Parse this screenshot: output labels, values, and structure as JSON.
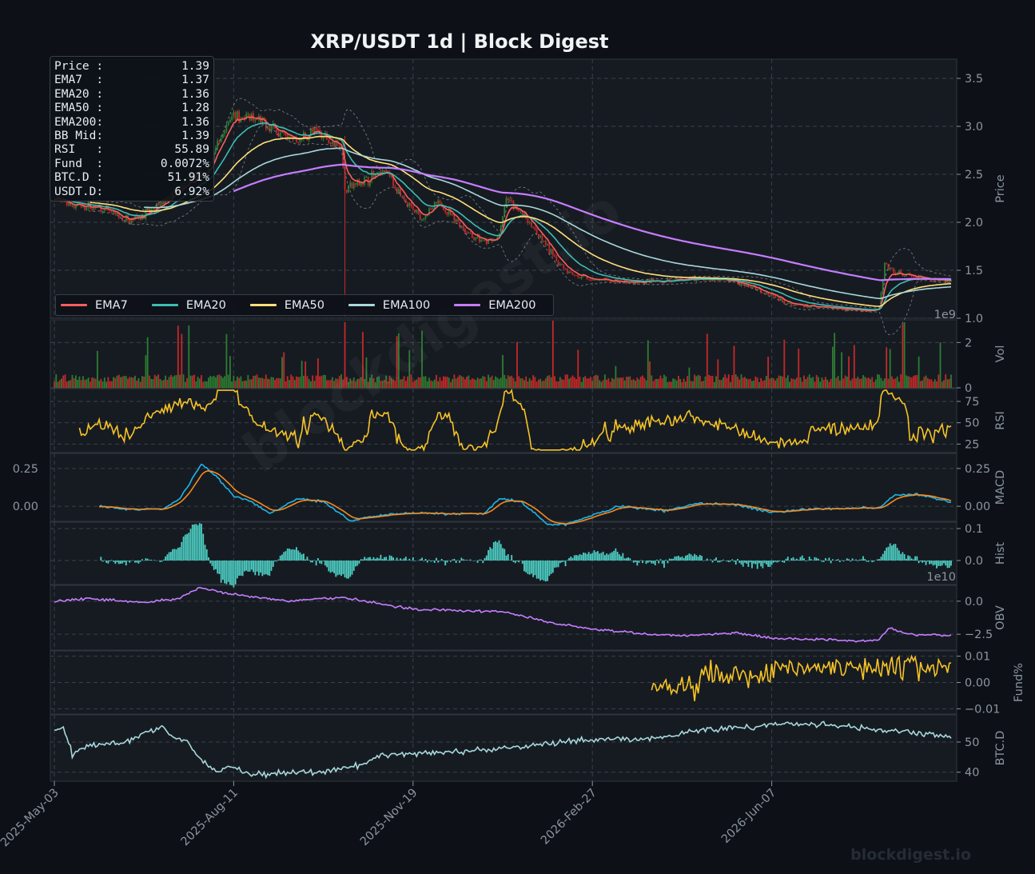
{
  "title": "XRP/USDT  1d  |  Block Digest",
  "watermark": "blockdigest.io",
  "footer_brand": "blockdigest.io",
  "colors": {
    "background": "#0d1117",
    "panel": "#161b22",
    "ema7": "#f85e5e",
    "ema20": "#3dbdb3",
    "ema50": "#ffe07a",
    "ema100": "#a8d8dc",
    "ema200": "#c77dff",
    "up": "#2e7d32",
    "down": "#c62828",
    "rsi": "#f7c325",
    "macd": "#1fb6e8",
    "signal": "#f7891e",
    "hist": "#4ed1c6",
    "obv": "#c77dff",
    "funding": "#f7c325",
    "btcd": "#a8d8dc"
  },
  "info_box": [
    {
      "label": "Price :",
      "value": "1.39"
    },
    {
      "label": "EMA7  :",
      "value": "1.37"
    },
    {
      "label": "EMA20 :",
      "value": "1.36"
    },
    {
      "label": "EMA50 :",
      "value": "1.28"
    },
    {
      "label": "EMA200:",
      "value": "1.36"
    },
    {
      "label": "BB Mid:",
      "value": "1.39"
    },
    {
      "label": "RSI   :",
      "value": "55.89"
    },
    {
      "label": "Fund  :",
      "value": "0.0072%"
    },
    {
      "label": "BTC.D :",
      "value": "51.91%"
    },
    {
      "label": "USDT.D:",
      "value": "6.92%"
    }
  ],
  "legend": [
    {
      "name": "EMA7",
      "color": "#f85e5e"
    },
    {
      "name": "EMA20",
      "color": "#3dbdb3"
    },
    {
      "name": "EMA50",
      "color": "#ffe07a"
    },
    {
      "name": "EMA100",
      "color": "#a8d8dc"
    },
    {
      "name": "EMA200",
      "color": "#c77dff"
    }
  ],
  "chart_data": {
    "type": "line",
    "title": "XRP/USDT  1d  |  Block Digest",
    "x_tick_labels": [
      "2025-May-03",
      "2025-Aug-11",
      "2025-Nov-19",
      "2026-Feb-27",
      "2026-Jun-07"
    ],
    "x_tick_days": [
      0,
      100,
      200,
      300,
      400
    ],
    "n_days": 500,
    "grid": true,
    "legend_position": "bottom-left",
    "panels": [
      {
        "id": "price",
        "ylabel": "Price",
        "ylim": [
          1.0,
          3.7
        ],
        "ticks": [
          1.0,
          1.5,
          2.0,
          2.5,
          3.0,
          3.5
        ],
        "tick_labels": [
          "1.0",
          "1.5",
          "2.0",
          "2.5",
          "3.0",
          "3.5"
        ],
        "close_keypoints": [
          [
            0,
            2.25
          ],
          [
            10,
            2.18
          ],
          [
            25,
            2.15
          ],
          [
            40,
            2.02
          ],
          [
            55,
            2.12
          ],
          [
            70,
            2.35
          ],
          [
            85,
            2.55
          ],
          [
            95,
            2.95
          ],
          [
            100,
            3.15
          ],
          [
            105,
            3.1
          ],
          [
            120,
            3.0
          ],
          [
            135,
            2.85
          ],
          [
            145,
            2.95
          ],
          [
            160,
            2.8
          ],
          [
            162,
            2.35
          ],
          [
            175,
            2.45
          ],
          [
            185,
            2.55
          ],
          [
            195,
            2.2
          ],
          [
            205,
            2.05
          ],
          [
            215,
            2.2
          ],
          [
            230,
            1.9
          ],
          [
            240,
            1.78
          ],
          [
            248,
            1.85
          ],
          [
            252,
            2.25
          ],
          [
            258,
            2.15
          ],
          [
            265,
            2.0
          ],
          [
            280,
            1.6
          ],
          [
            290,
            1.45
          ],
          [
            300,
            1.4
          ],
          [
            320,
            1.37
          ],
          [
            340,
            1.38
          ],
          [
            360,
            1.42
          ],
          [
            380,
            1.38
          ],
          [
            400,
            1.25
          ],
          [
            410,
            1.15
          ],
          [
            420,
            1.12
          ],
          [
            440,
            1.1
          ],
          [
            455,
            1.08
          ],
          [
            460,
            1.1
          ],
          [
            463,
            1.55
          ],
          [
            467,
            1.48
          ],
          [
            480,
            1.42
          ],
          [
            500,
            1.39
          ]
        ],
        "series": [
          {
            "name": "EMA7",
            "period": 7
          },
          {
            "name": "EMA20",
            "period": 20
          },
          {
            "name": "EMA50",
            "period": 50
          },
          {
            "name": "EMA100",
            "period": 100
          },
          {
            "name": "EMA200",
            "period": 200
          }
        ],
        "scale_note": "1e9"
      },
      {
        "id": "vol",
        "ylabel": "Vol",
        "ylim": [
          0,
          3
        ],
        "ticks": [
          0,
          2
        ],
        "tick_labels": [
          "0",
          "2"
        ],
        "units": "1e9"
      },
      {
        "id": "rsi",
        "ylabel": "RSI",
        "ylim": [
          15,
          90
        ],
        "ticks": [
          25,
          50,
          75
        ],
        "tick_labels": [
          "25",
          "50",
          "75"
        ],
        "latest": 55.89
      },
      {
        "id": "macd",
        "ylabel": "MACD",
        "ylim": [
          -0.1,
          0.35
        ],
        "ticks": [
          0.0,
          0.25
        ],
        "tick_labels": [
          "0.00",
          "0.25"
        ],
        "keypoints": [
          [
            25,
            0.0
          ],
          [
            40,
            -0.02
          ],
          [
            60,
            -0.02
          ],
          [
            70,
            0.05
          ],
          [
            82,
            0.28
          ],
          [
            90,
            0.2
          ],
          [
            100,
            0.07
          ],
          [
            110,
            0.03
          ],
          [
            120,
            -0.05
          ],
          [
            135,
            0.05
          ],
          [
            150,
            0.03
          ],
          [
            165,
            -0.1
          ],
          [
            175,
            -0.07
          ],
          [
            190,
            -0.05
          ],
          [
            205,
            -0.04
          ],
          [
            215,
            -0.05
          ],
          [
            240,
            -0.05
          ],
          [
            248,
            0.05
          ],
          [
            260,
            0.03
          ],
          [
            275,
            -0.12
          ],
          [
            285,
            -0.12
          ],
          [
            300,
            -0.06
          ],
          [
            315,
            0.0
          ],
          [
            340,
            -0.03
          ],
          [
            360,
            0.02
          ],
          [
            380,
            0.01
          ],
          [
            400,
            -0.04
          ],
          [
            420,
            -0.02
          ],
          [
            450,
            -0.01
          ],
          [
            460,
            -0.01
          ],
          [
            468,
            0.07
          ],
          [
            480,
            0.08
          ],
          [
            500,
            0.03
          ]
        ]
      },
      {
        "id": "hist",
        "ylabel": "Hist",
        "ylim": [
          -0.075,
          0.12
        ],
        "ticks": [
          0.0,
          0.1
        ],
        "tick_labels": [
          "0.0",
          "0.1"
        ]
      },
      {
        "id": "obv",
        "ylabel": "OBV",
        "ylim": [
          -3.7,
          1.2
        ],
        "ticks": [
          -2.5,
          0.0
        ],
        "tick_labels": [
          "−2.5",
          "0.0"
        ],
        "scale_note": "1e10",
        "keypoints": [
          [
            0,
            0.0
          ],
          [
            20,
            0.2
          ],
          [
            50,
            -0.1
          ],
          [
            70,
            0.2
          ],
          [
            80,
            1.0
          ],
          [
            100,
            0.5
          ],
          [
            130,
            0.0
          ],
          [
            160,
            0.3
          ],
          [
            200,
            -0.6
          ],
          [
            250,
            -0.8
          ],
          [
            280,
            -1.7
          ],
          [
            300,
            -2.1
          ],
          [
            330,
            -2.5
          ],
          [
            350,
            -2.6
          ],
          [
            380,
            -2.4
          ],
          [
            400,
            -2.8
          ],
          [
            430,
            -2.9
          ],
          [
            450,
            -3.0
          ],
          [
            460,
            -2.9
          ],
          [
            465,
            -2.0
          ],
          [
            475,
            -2.5
          ],
          [
            500,
            -2.6
          ]
        ]
      },
      {
        "id": "funding",
        "ylabel": "Fund%",
        "ylim": [
          -0.012,
          0.012
        ],
        "ticks": [
          -0.01,
          0.0,
          0.01
        ],
        "tick_labels": [
          "−0.01",
          "0.00",
          "0.01"
        ],
        "start_day": 333,
        "latest": 0.0072
      },
      {
        "id": "btcd",
        "ylabel": "BTC.D",
        "ylim": [
          37,
          59
        ],
        "ticks": [
          40,
          50
        ],
        "tick_labels": [
          "40",
          "50"
        ],
        "latest": 51.91,
        "keypoints": [
          [
            0,
            54
          ],
          [
            5,
            55
          ],
          [
            10,
            46
          ],
          [
            20,
            49
          ],
          [
            40,
            50
          ],
          [
            50,
            53
          ],
          [
            60,
            55
          ],
          [
            65,
            52
          ],
          [
            75,
            50
          ],
          [
            80,
            45
          ],
          [
            90,
            40
          ],
          [
            100,
            42
          ],
          [
            110,
            39
          ],
          [
            130,
            40
          ],
          [
            150,
            40
          ],
          [
            170,
            42
          ],
          [
            185,
            46
          ],
          [
            200,
            46
          ],
          [
            230,
            47
          ],
          [
            270,
            49
          ],
          [
            300,
            51
          ],
          [
            330,
            51
          ],
          [
            360,
            54
          ],
          [
            390,
            55
          ],
          [
            400,
            56
          ],
          [
            430,
            56
          ],
          [
            460,
            54
          ],
          [
            500,
            52
          ]
        ]
      }
    ],
    "secondary_left_ticks": {
      "panel": "macd",
      "ticks": [
        0.0,
        0.25
      ],
      "tick_labels": [
        "0.00",
        "0.25"
      ]
    }
  }
}
